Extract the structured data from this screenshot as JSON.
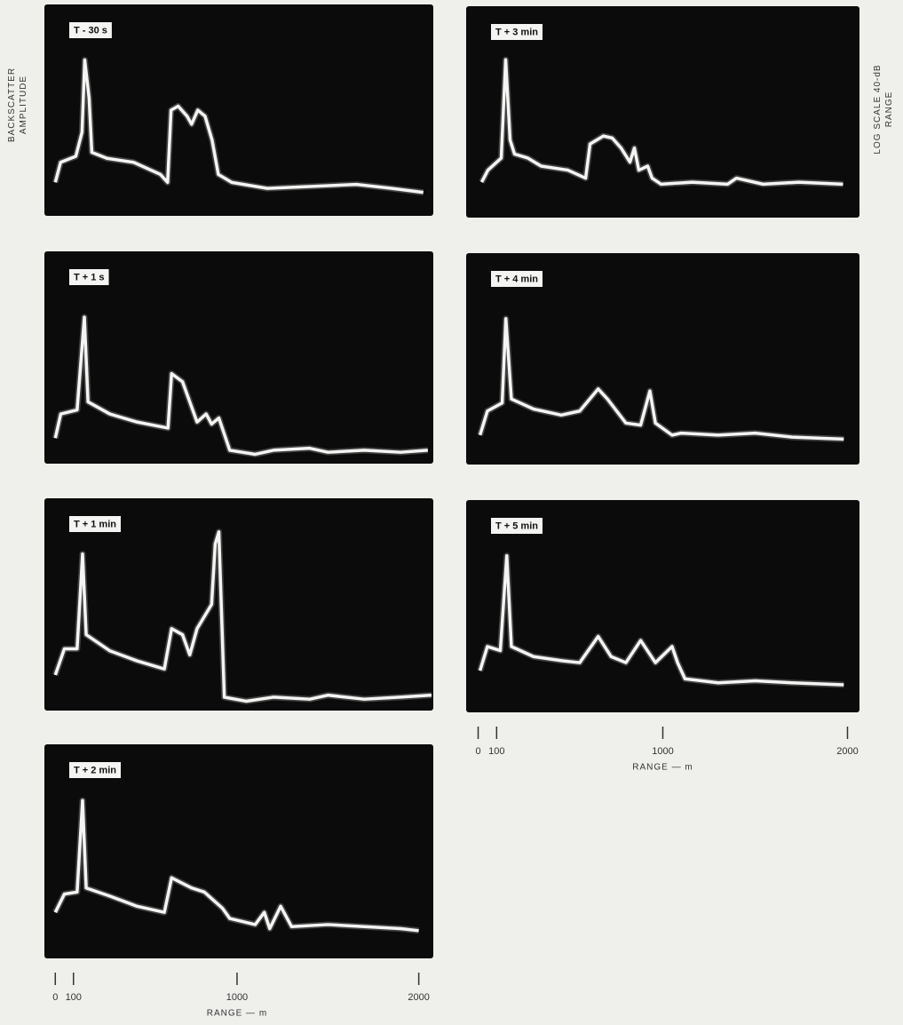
{
  "chart_data": [
    {
      "type": "line",
      "title": "T - 30 s",
      "ylabel": "BACKSCATTER AMPLITUDE",
      "color": "#f4f4f2",
      "xlim": [
        -60,
        2080
      ],
      "ylim": [
        0,
        100
      ],
      "x": [
        0,
        29,
        113,
        147,
        162,
        186,
        201,
        284,
        431,
        578,
        618,
        637,
        676,
        725,
        750,
        784,
        824,
        863,
        897,
        971,
        1167,
        1412,
        1657,
        1853,
        2025
      ],
      "values": [
        14,
        24,
        27,
        39,
        75,
        56,
        29,
        26,
        24,
        18,
        14,
        50,
        52,
        47,
        43,
        50,
        47,
        35,
        18,
        14,
        11,
        12,
        13,
        11,
        9
      ]
    },
    {
      "type": "line",
      "title": "T + 3 min",
      "y2label": "LOG SCALE 40-dB RANGE",
      "color": "#f4f4f2",
      "xlim": [
        -65,
        2065
      ],
      "ylim": [
        0,
        100
      ],
      "x": [
        19,
        53,
        125,
        149,
        173,
        197,
        269,
        341,
        486,
        582,
        606,
        678,
        726,
        774,
        822,
        846,
        870,
        918,
        942,
        990,
        1159,
        1351,
        1399,
        1543,
        1736,
        1976
      ],
      "values": [
        15,
        21,
        27,
        76,
        36,
        29,
        27,
        23,
        21,
        17,
        34,
        38,
        37,
        32,
        25,
        32,
        21,
        23,
        17,
        14,
        15,
        14,
        17,
        14,
        15,
        14
      ]
    },
    {
      "type": "line",
      "title": "T + 1 s",
      "color": "#f4f4f2",
      "xlim": [
        -60,
        2080
      ],
      "ylim": [
        0,
        100
      ],
      "x": [
        0,
        30,
        120,
        160,
        180,
        300,
        450,
        620,
        640,
        700,
        740,
        780,
        830,
        860,
        900,
        960,
        1100,
        1200,
        1400,
        1500,
        1700,
        1900,
        2050
      ],
      "values": [
        10,
        22,
        24,
        70,
        28,
        22,
        18,
        15,
        42,
        38,
        28,
        18,
        22,
        17,
        20,
        4,
        2,
        4,
        5,
        3,
        4,
        3,
        4
      ]
    },
    {
      "type": "line",
      "title": "T + 4 min",
      "color": "#f4f4f2",
      "xlim": [
        -65,
        2065
      ],
      "ylim": [
        0,
        100
      ],
      "x": [
        10,
        50,
        130,
        150,
        180,
        300,
        450,
        550,
        650,
        700,
        800,
        880,
        930,
        960,
        1050,
        1100,
        1300,
        1500,
        1700,
        1980
      ],
      "values": [
        12,
        24,
        28,
        70,
        30,
        25,
        22,
        24,
        35,
        30,
        18,
        17,
        34,
        18,
        12,
        13,
        12,
        13,
        11,
        10
      ]
    },
    {
      "type": "line",
      "title": "T + 1 min",
      "color": "#f4f4f2",
      "xlim": [
        -60,
        2080
      ],
      "ylim": [
        0,
        100
      ],
      "x": [
        0,
        50,
        120,
        150,
        170,
        300,
        450,
        600,
        640,
        700,
        740,
        780,
        860,
        880,
        900,
        930,
        1050,
        1200,
        1400,
        1500,
        1700,
        1900,
        2070
      ],
      "values": [
        15,
        28,
        28,
        75,
        35,
        27,
        22,
        18,
        38,
        35,
        25,
        38,
        50,
        80,
        86,
        4,
        2,
        4,
        3,
        5,
        3,
        4,
        5
      ]
    },
    {
      "type": "line",
      "title": "T + 5 min",
      "color": "#f4f4f2",
      "xlim": [
        -65,
        2065
      ],
      "ylim": [
        0,
        100
      ],
      "xlabel": "RANGE — m",
      "xticks": [
        0,
        100,
        1000,
        2000
      ],
      "x": [
        10,
        50,
        120,
        155,
        180,
        300,
        450,
        550,
        650,
        720,
        800,
        880,
        960,
        1050,
        1080,
        1120,
        1300,
        1500,
        1700,
        1980
      ],
      "values": [
        18,
        30,
        28,
        75,
        30,
        25,
        23,
        22,
        35,
        25,
        22,
        33,
        22,
        30,
        22,
        14,
        12,
        13,
        12,
        11
      ]
    },
    {
      "type": "line",
      "title": "T + 2 min",
      "color": "#f4f4f2",
      "xlim": [
        -60,
        2080
      ],
      "ylim": [
        0,
        100
      ],
      "xlabel": "RANGE — m",
      "xticks": [
        0,
        100,
        1000,
        2000
      ],
      "x": [
        0,
        50,
        120,
        150,
        170,
        300,
        450,
        600,
        640,
        750,
        820,
        920,
        960,
        1100,
        1150,
        1180,
        1240,
        1300,
        1500,
        1700,
        1900,
        2000
      ],
      "values": [
        20,
        29,
        30,
        75,
        32,
        28,
        23,
        20,
        37,
        32,
        30,
        22,
        17,
        14,
        20,
        12,
        23,
        13,
        14,
        13,
        12,
        11
      ]
    }
  ]
}
